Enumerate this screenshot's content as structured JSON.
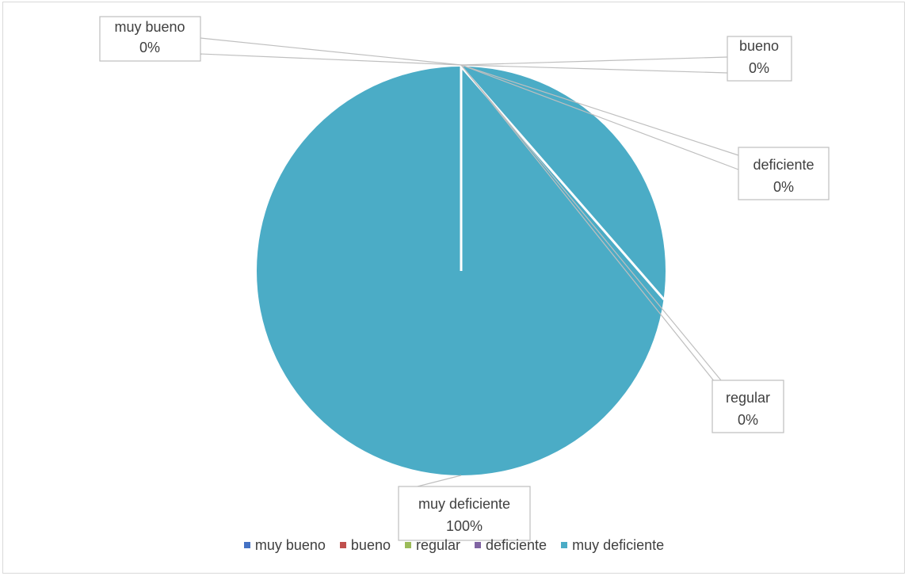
{
  "chart_data": {
    "type": "pie",
    "categories": [
      "muy bueno",
      "bueno",
      "regular",
      "deficiente",
      "muy deficiente"
    ],
    "values": [
      0,
      0,
      0,
      0,
      100
    ],
    "data_labels": [
      {
        "name": "muy bueno",
        "pct": "0%"
      },
      {
        "name": "bueno",
        "pct": "0%"
      },
      {
        "name": "regular",
        "pct": "0%"
      },
      {
        "name": "deficiente",
        "pct": "0%"
      },
      {
        "name": "muy deficiente",
        "pct": "100%"
      }
    ],
    "colors": [
      "#4472c4",
      "#c0504d",
      "#9bbb59",
      "#8064a2",
      "#4bacc6"
    ],
    "legend_position": "bottom",
    "title": ""
  }
}
